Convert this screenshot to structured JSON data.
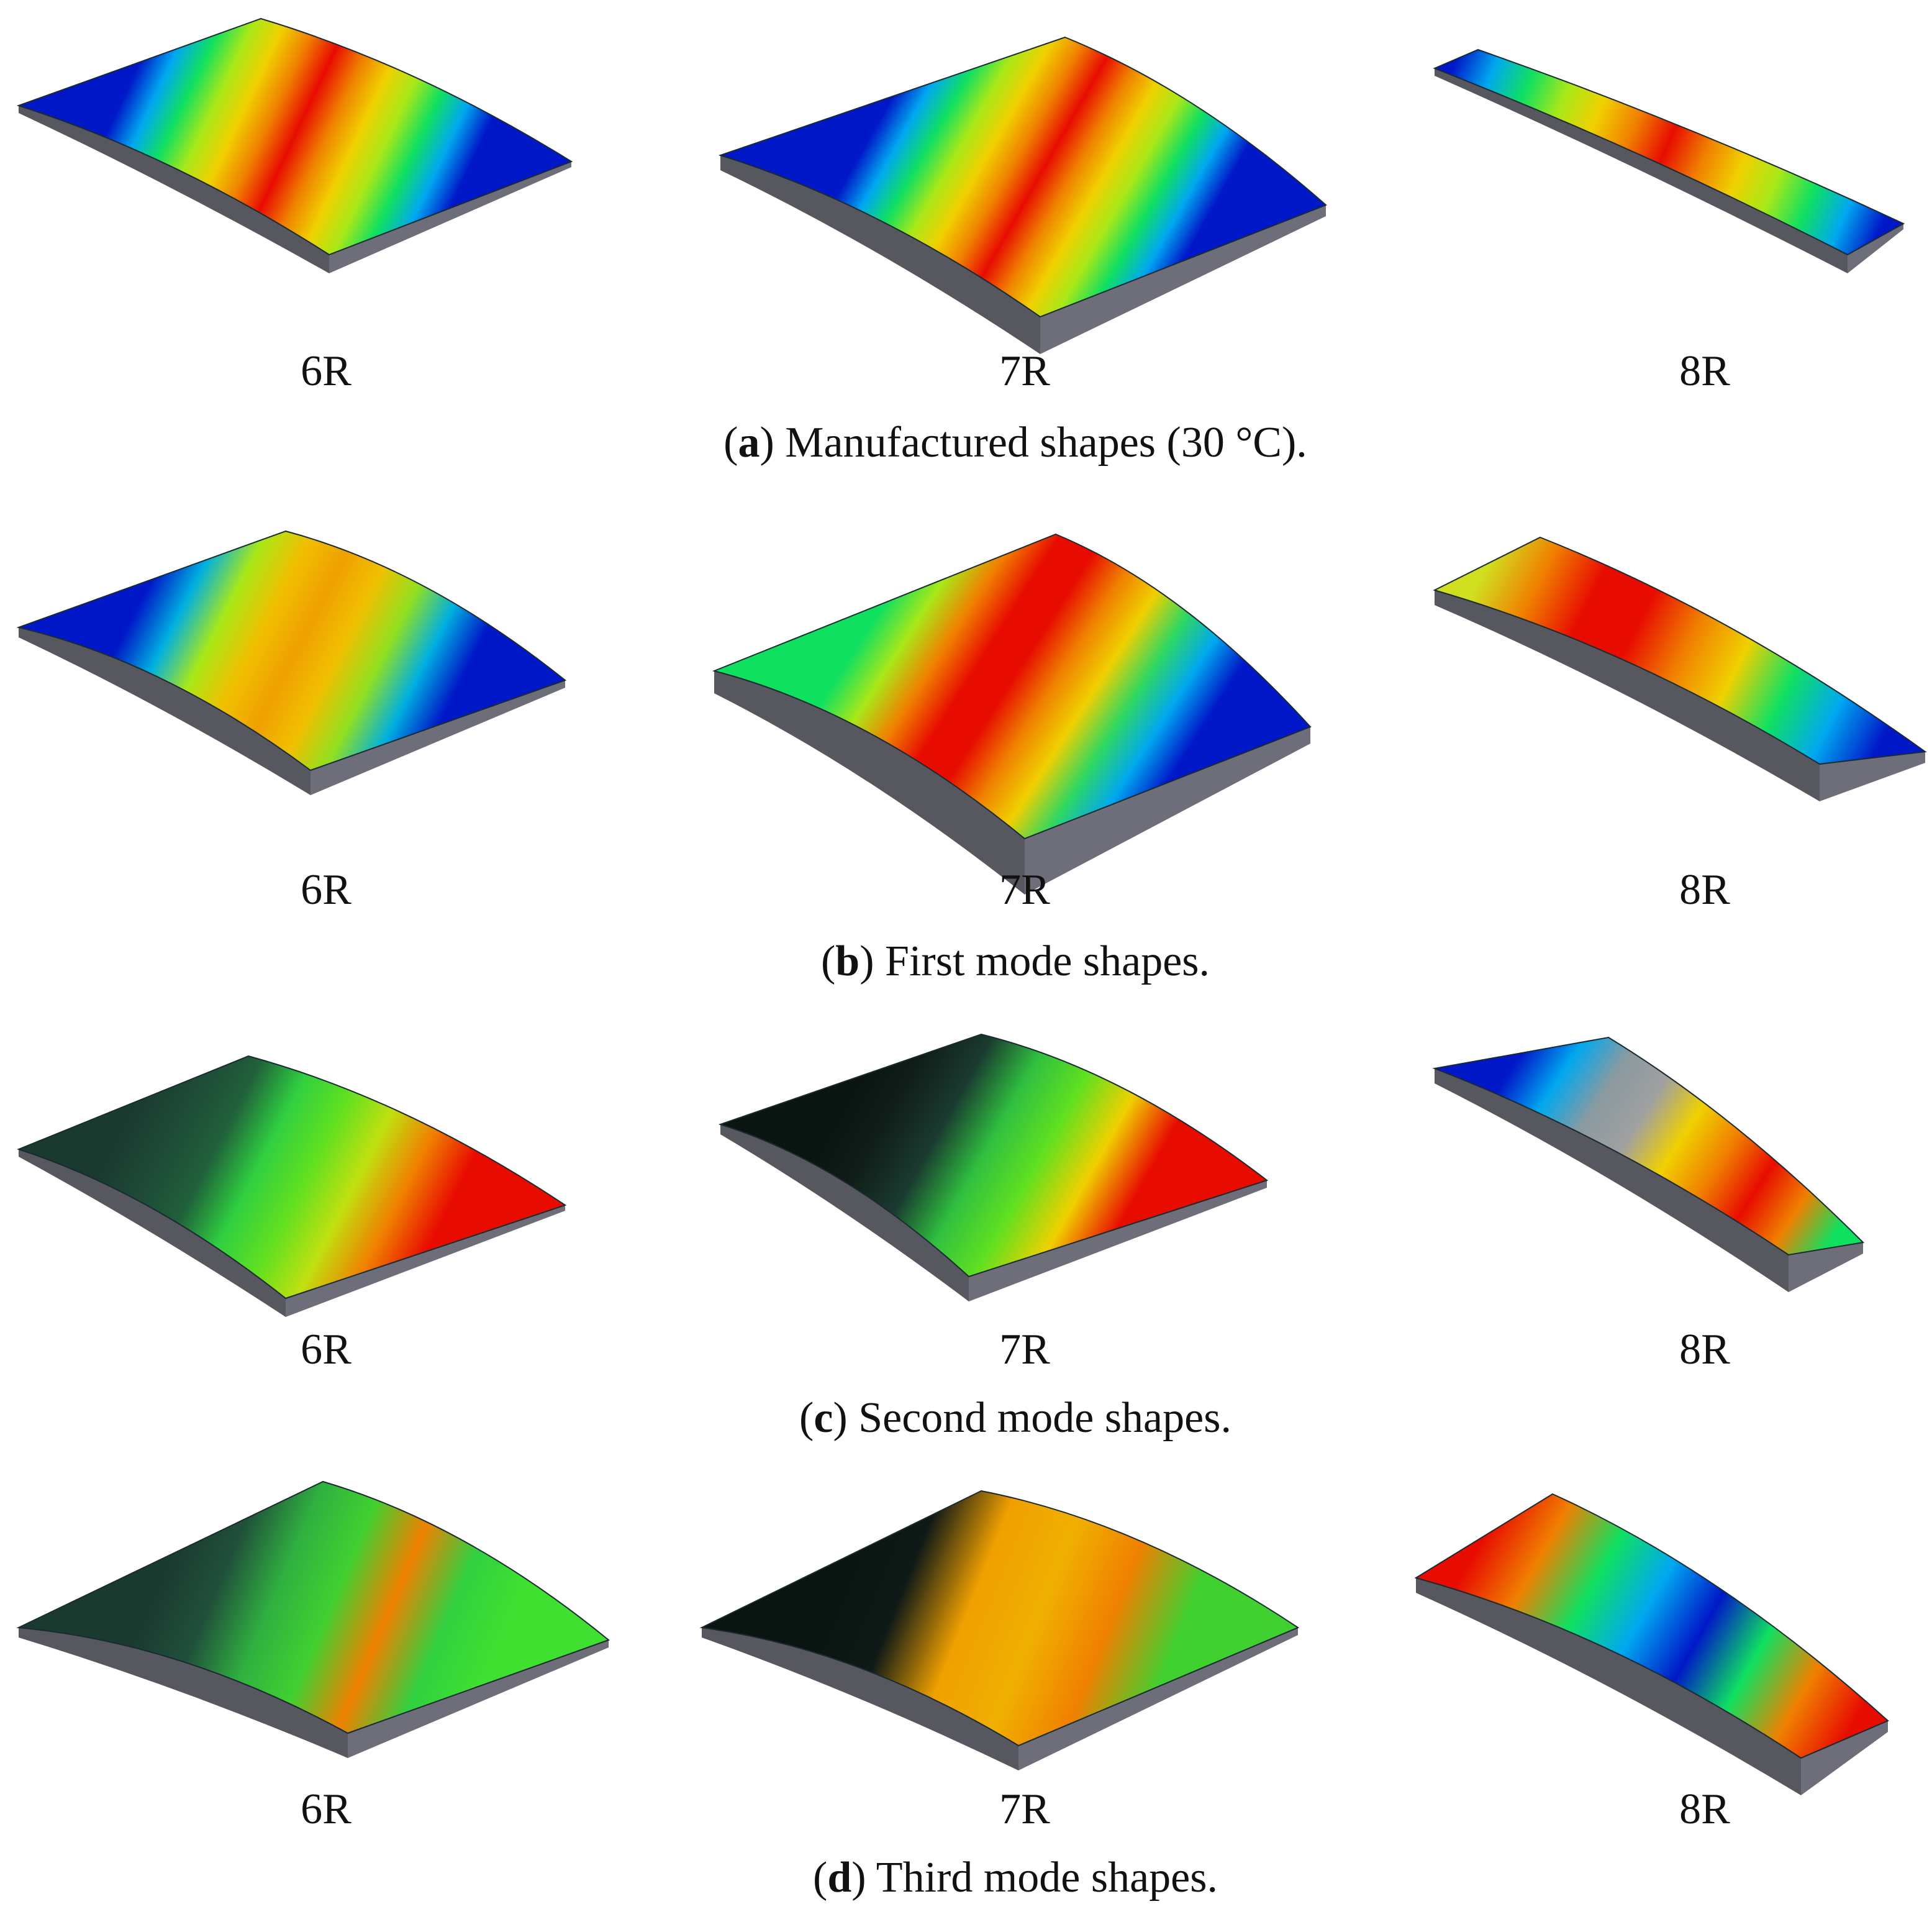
{
  "panels": [
    {
      "caption": [
        "(",
        "a",
        ") Manufactured shapes (30 °C)."
      ],
      "labels": [
        "6R",
        "7R",
        "8R"
      ]
    },
    {
      "caption": [
        "(",
        "b",
        ") First mode shapes."
      ],
      "labels": [
        "6R",
        "7R",
        "8R"
      ]
    },
    {
      "caption": [
        "(",
        "c",
        ") Second mode shapes."
      ],
      "labels": [
        "6R",
        "7R",
        "8R"
      ]
    },
    {
      "caption": [
        "(",
        "d",
        ") Third mode shapes."
      ],
      "labels": [
        "6R",
        "7R",
        "8R"
      ]
    }
  ]
}
